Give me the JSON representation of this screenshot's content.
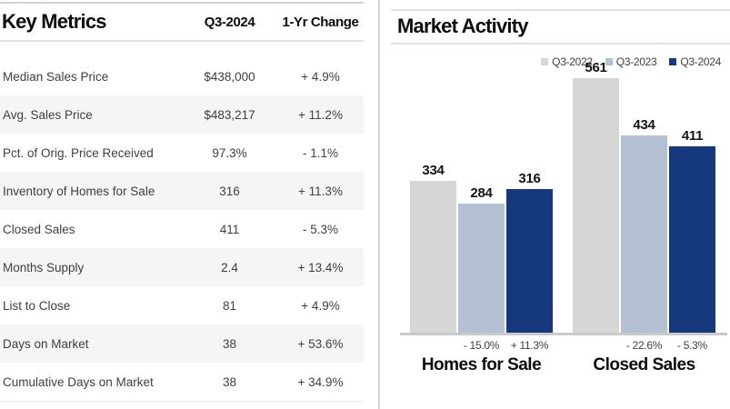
{
  "key_metrics": {
    "title": "Key Metrics",
    "col_period": "Q3-2024",
    "col_change": "1-Yr Change",
    "rows": [
      {
        "label": "Median Sales Price",
        "value": "$438,000",
        "change": "+ 4.9%"
      },
      {
        "label": "Avg. Sales Price",
        "value": "$483,217",
        "change": "+ 11.2%"
      },
      {
        "label": "Pct. of Orig. Price Received",
        "value": "97.3%",
        "change": "- 1.1%"
      },
      {
        "label": "Inventory of Homes for Sale",
        "value": "316",
        "change": "+ 11.3%"
      },
      {
        "label": "Closed Sales",
        "value": "411",
        "change": "- 5.3%"
      },
      {
        "label": "Months Supply",
        "value": "2.4",
        "change": "+ 13.4%"
      },
      {
        "label": "List to Close",
        "value": "81",
        "change": "+ 4.9%"
      },
      {
        "label": "Days on Market",
        "value": "38",
        "change": "+ 53.6%"
      },
      {
        "label": "Cumulative Days on Market",
        "value": "38",
        "change": "+ 34.9%"
      }
    ]
  },
  "market_activity": {
    "title": "Market Activity"
  },
  "chart_data": {
    "type": "bar",
    "title": "Market Activity",
    "categories": [
      "Homes for Sale",
      "Closed Sales"
    ],
    "series": [
      {
        "name": "Q3-2022",
        "color": "#d6d6d6",
        "values": [
          334,
          561
        ]
      },
      {
        "name": "Q3-2023",
        "color": "#b3c1d2",
        "values": [
          284,
          434
        ]
      },
      {
        "name": "Q3-2024",
        "color": "#16387c",
        "values": [
          316,
          411
        ]
      }
    ],
    "pct_change_labels": [
      [
        "",
        "- 15.0%",
        "+ 11.3%"
      ],
      [
        "",
        "- 22.6%",
        "- 5.3%"
      ]
    ],
    "ylim": [
      0,
      600
    ],
    "grid": false,
    "legend_position": "top-right",
    "value_labels": true
  },
  "colors": {
    "bar_q3_2022": "#d6d6d6",
    "bar_q3_2023": "#b3c1d2",
    "bar_q3_2024": "#16387c",
    "row_stripe": "#f5f5f5",
    "rule": "#e0e0e0",
    "axis": "#c9c9c9"
  }
}
